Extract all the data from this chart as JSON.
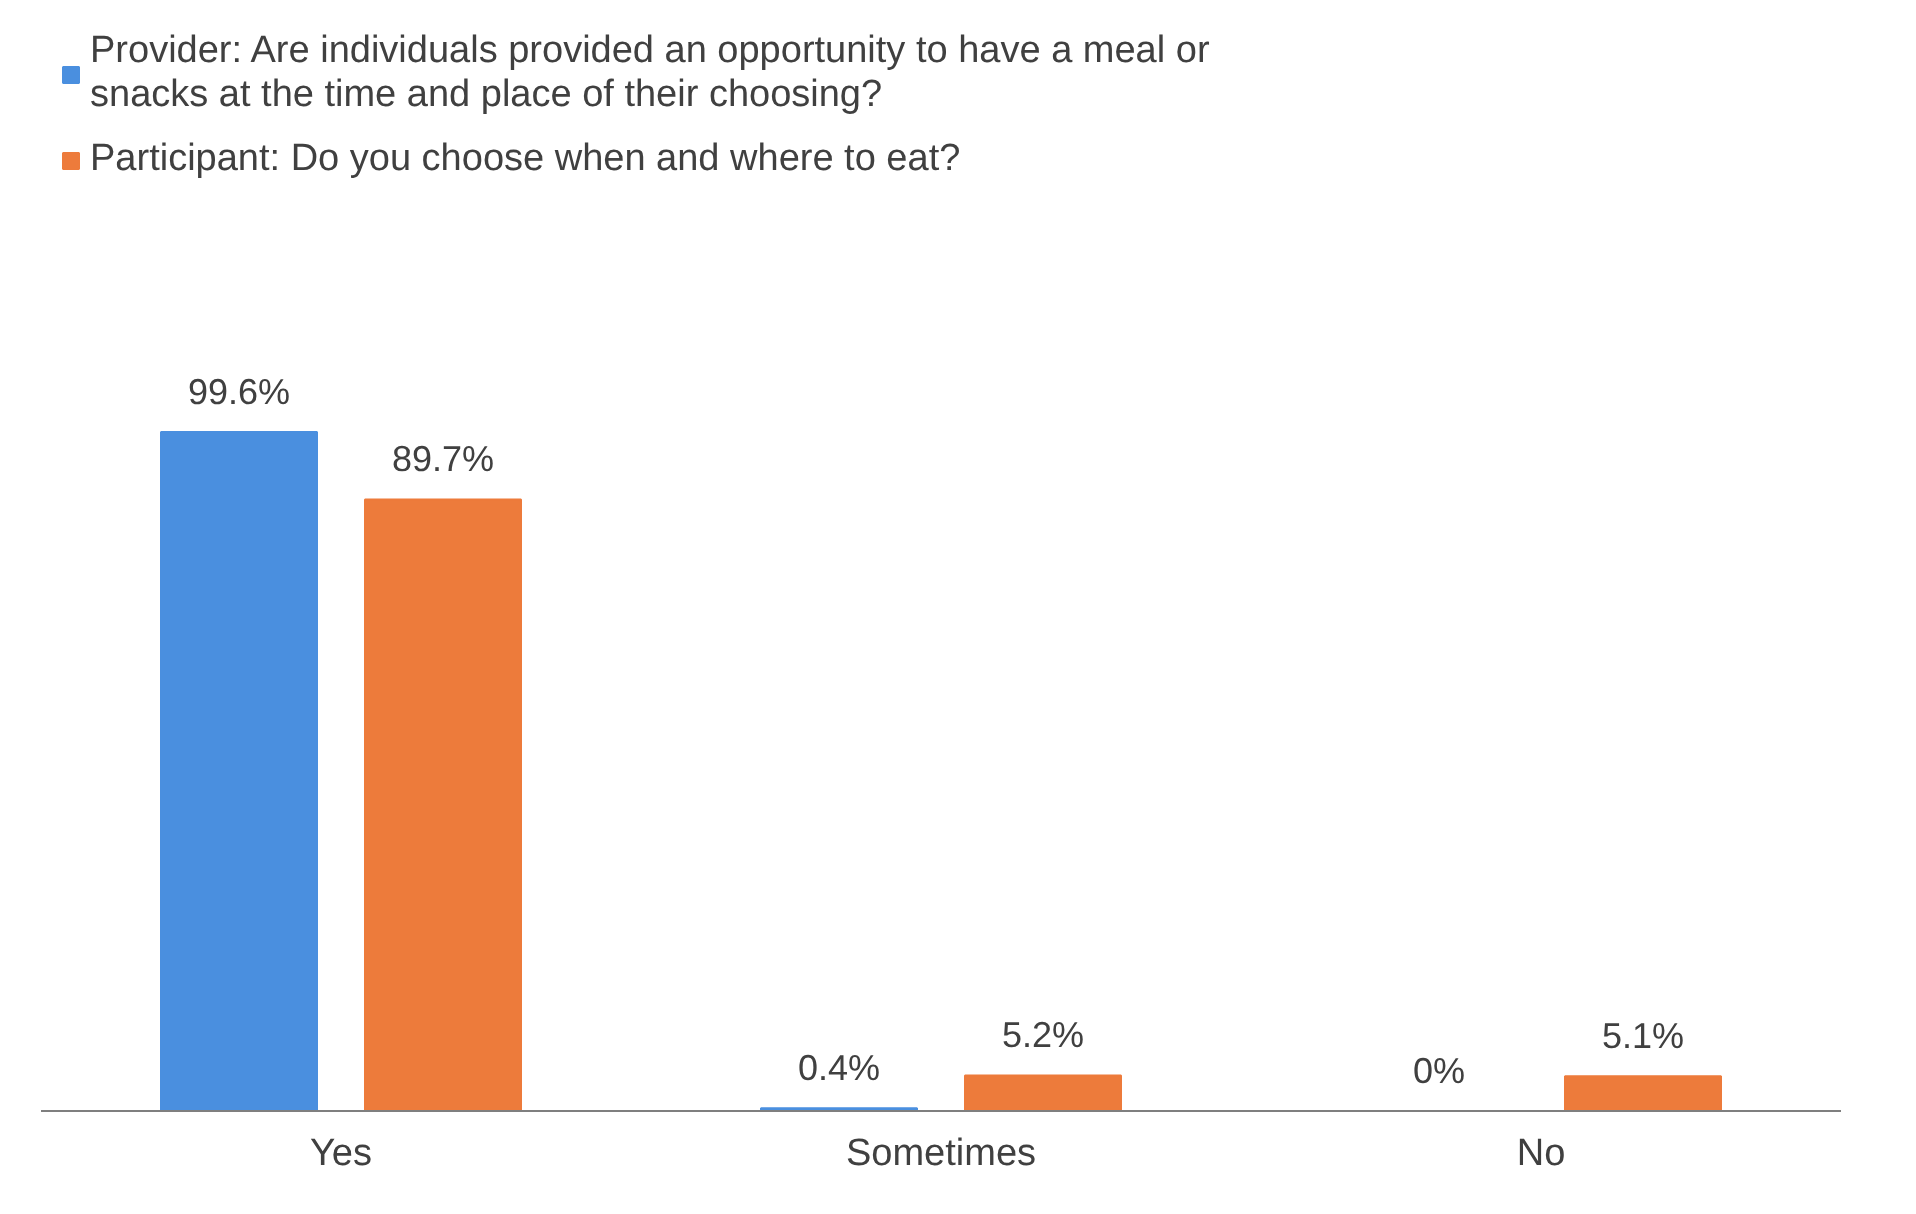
{
  "chart_data": {
    "type": "bar",
    "categories": [
      "Yes",
      "Sometimes",
      "No"
    ],
    "series": [
      {
        "name": "Provider: Are individuals provided an opportunity to have a meal or snacks at the time and place of their choosing?",
        "color": "#4a8fdf",
        "values": [
          99.6,
          0.4,
          0
        ],
        "value_labels": [
          "99.6%",
          "0.4%",
          "0%"
        ]
      },
      {
        "name": "Participant: Do you choose when and where to eat?",
        "color": "#ed7b3b",
        "values": [
          89.7,
          5.2,
          5.1
        ],
        "value_labels": [
          "89.7%",
          "5.2%",
          "5.1%"
        ]
      }
    ],
    "legend": "top left",
    "tick_labels": "x"
  }
}
